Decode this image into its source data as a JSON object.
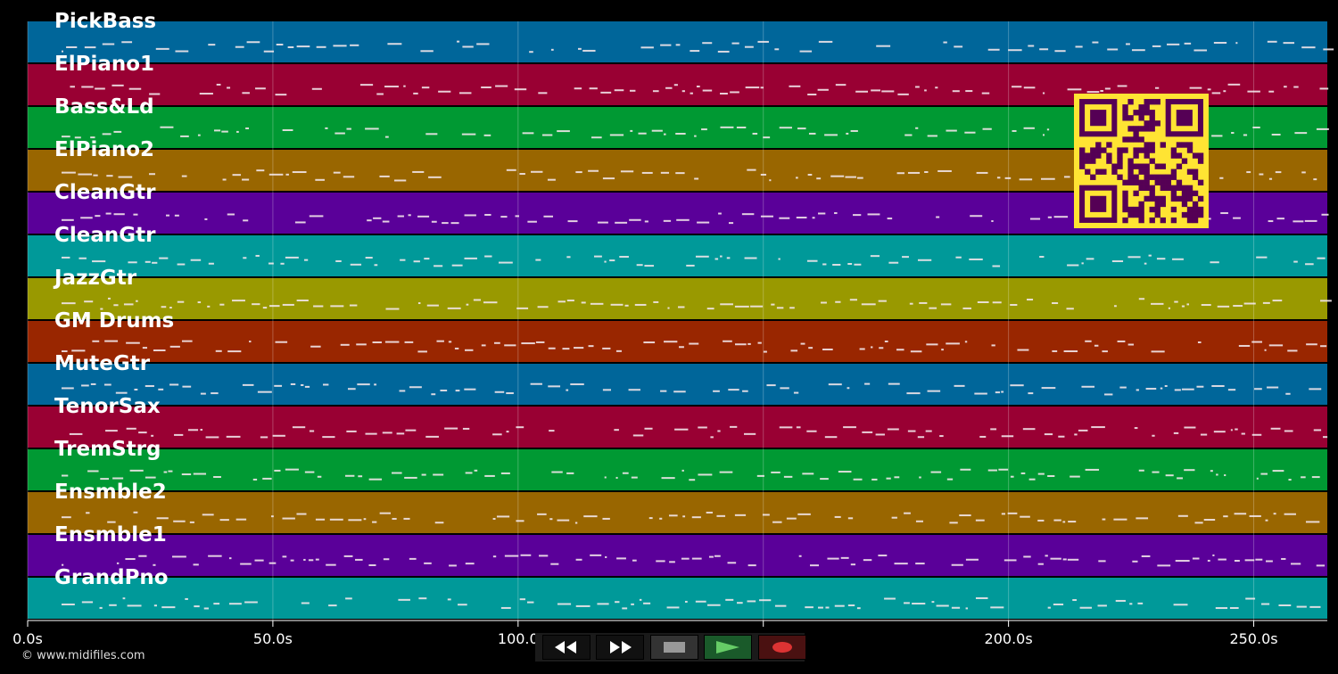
{
  "tracks": [
    {
      "name": "PickBass",
      "color": "#00669a"
    },
    {
      "name": "ElPiano1",
      "color": "#990033"
    },
    {
      "name": "Bass&Ld",
      "color": "#009933"
    },
    {
      "name": "ElPiano2",
      "color": "#996600"
    },
    {
      "name": "CleanGtr",
      "color": "#5a0099"
    },
    {
      "name": "CleanGtr",
      "color": "#009999"
    },
    {
      "name": "JazzGtr",
      "color": "#999900"
    },
    {
      "name": "GM Drums",
      "color": "#992600"
    },
    {
      "name": "MuteGtr",
      "color": "#00669a"
    },
    {
      "name": "TenorSax",
      "color": "#990033"
    },
    {
      "name": "TremStrg",
      "color": "#009933"
    },
    {
      "name": "Ensmble2",
      "color": "#996600"
    },
    {
      "name": "Ensmble1",
      "color": "#5a0099"
    },
    {
      "name": "GrandPno",
      "color": "#009999"
    }
  ],
  "timeline": {
    "ticks": [
      {
        "seconds": 0,
        "label": "0.0s"
      },
      {
        "seconds": 50,
        "label": "50.0s"
      },
      {
        "seconds": 100,
        "label": "100.0"
      },
      {
        "seconds": 150,
        "label": ""
      },
      {
        "seconds": 200,
        "label": "200.0s"
      },
      {
        "seconds": 250,
        "label": "250.0s"
      }
    ],
    "duration_seconds": 265
  },
  "copyright": "© www.midifiles.com",
  "transport": {
    "rewind_icon": "rewind-icon",
    "forward_icon": "fast-forward-icon",
    "stop_icon": "stop-icon",
    "play_icon": "play-icon",
    "record_icon": "record-icon",
    "play_color": "#66cc66",
    "record_color": "#dd3333"
  },
  "qr": {
    "foreground": "#550055",
    "background": "#ffe433"
  }
}
